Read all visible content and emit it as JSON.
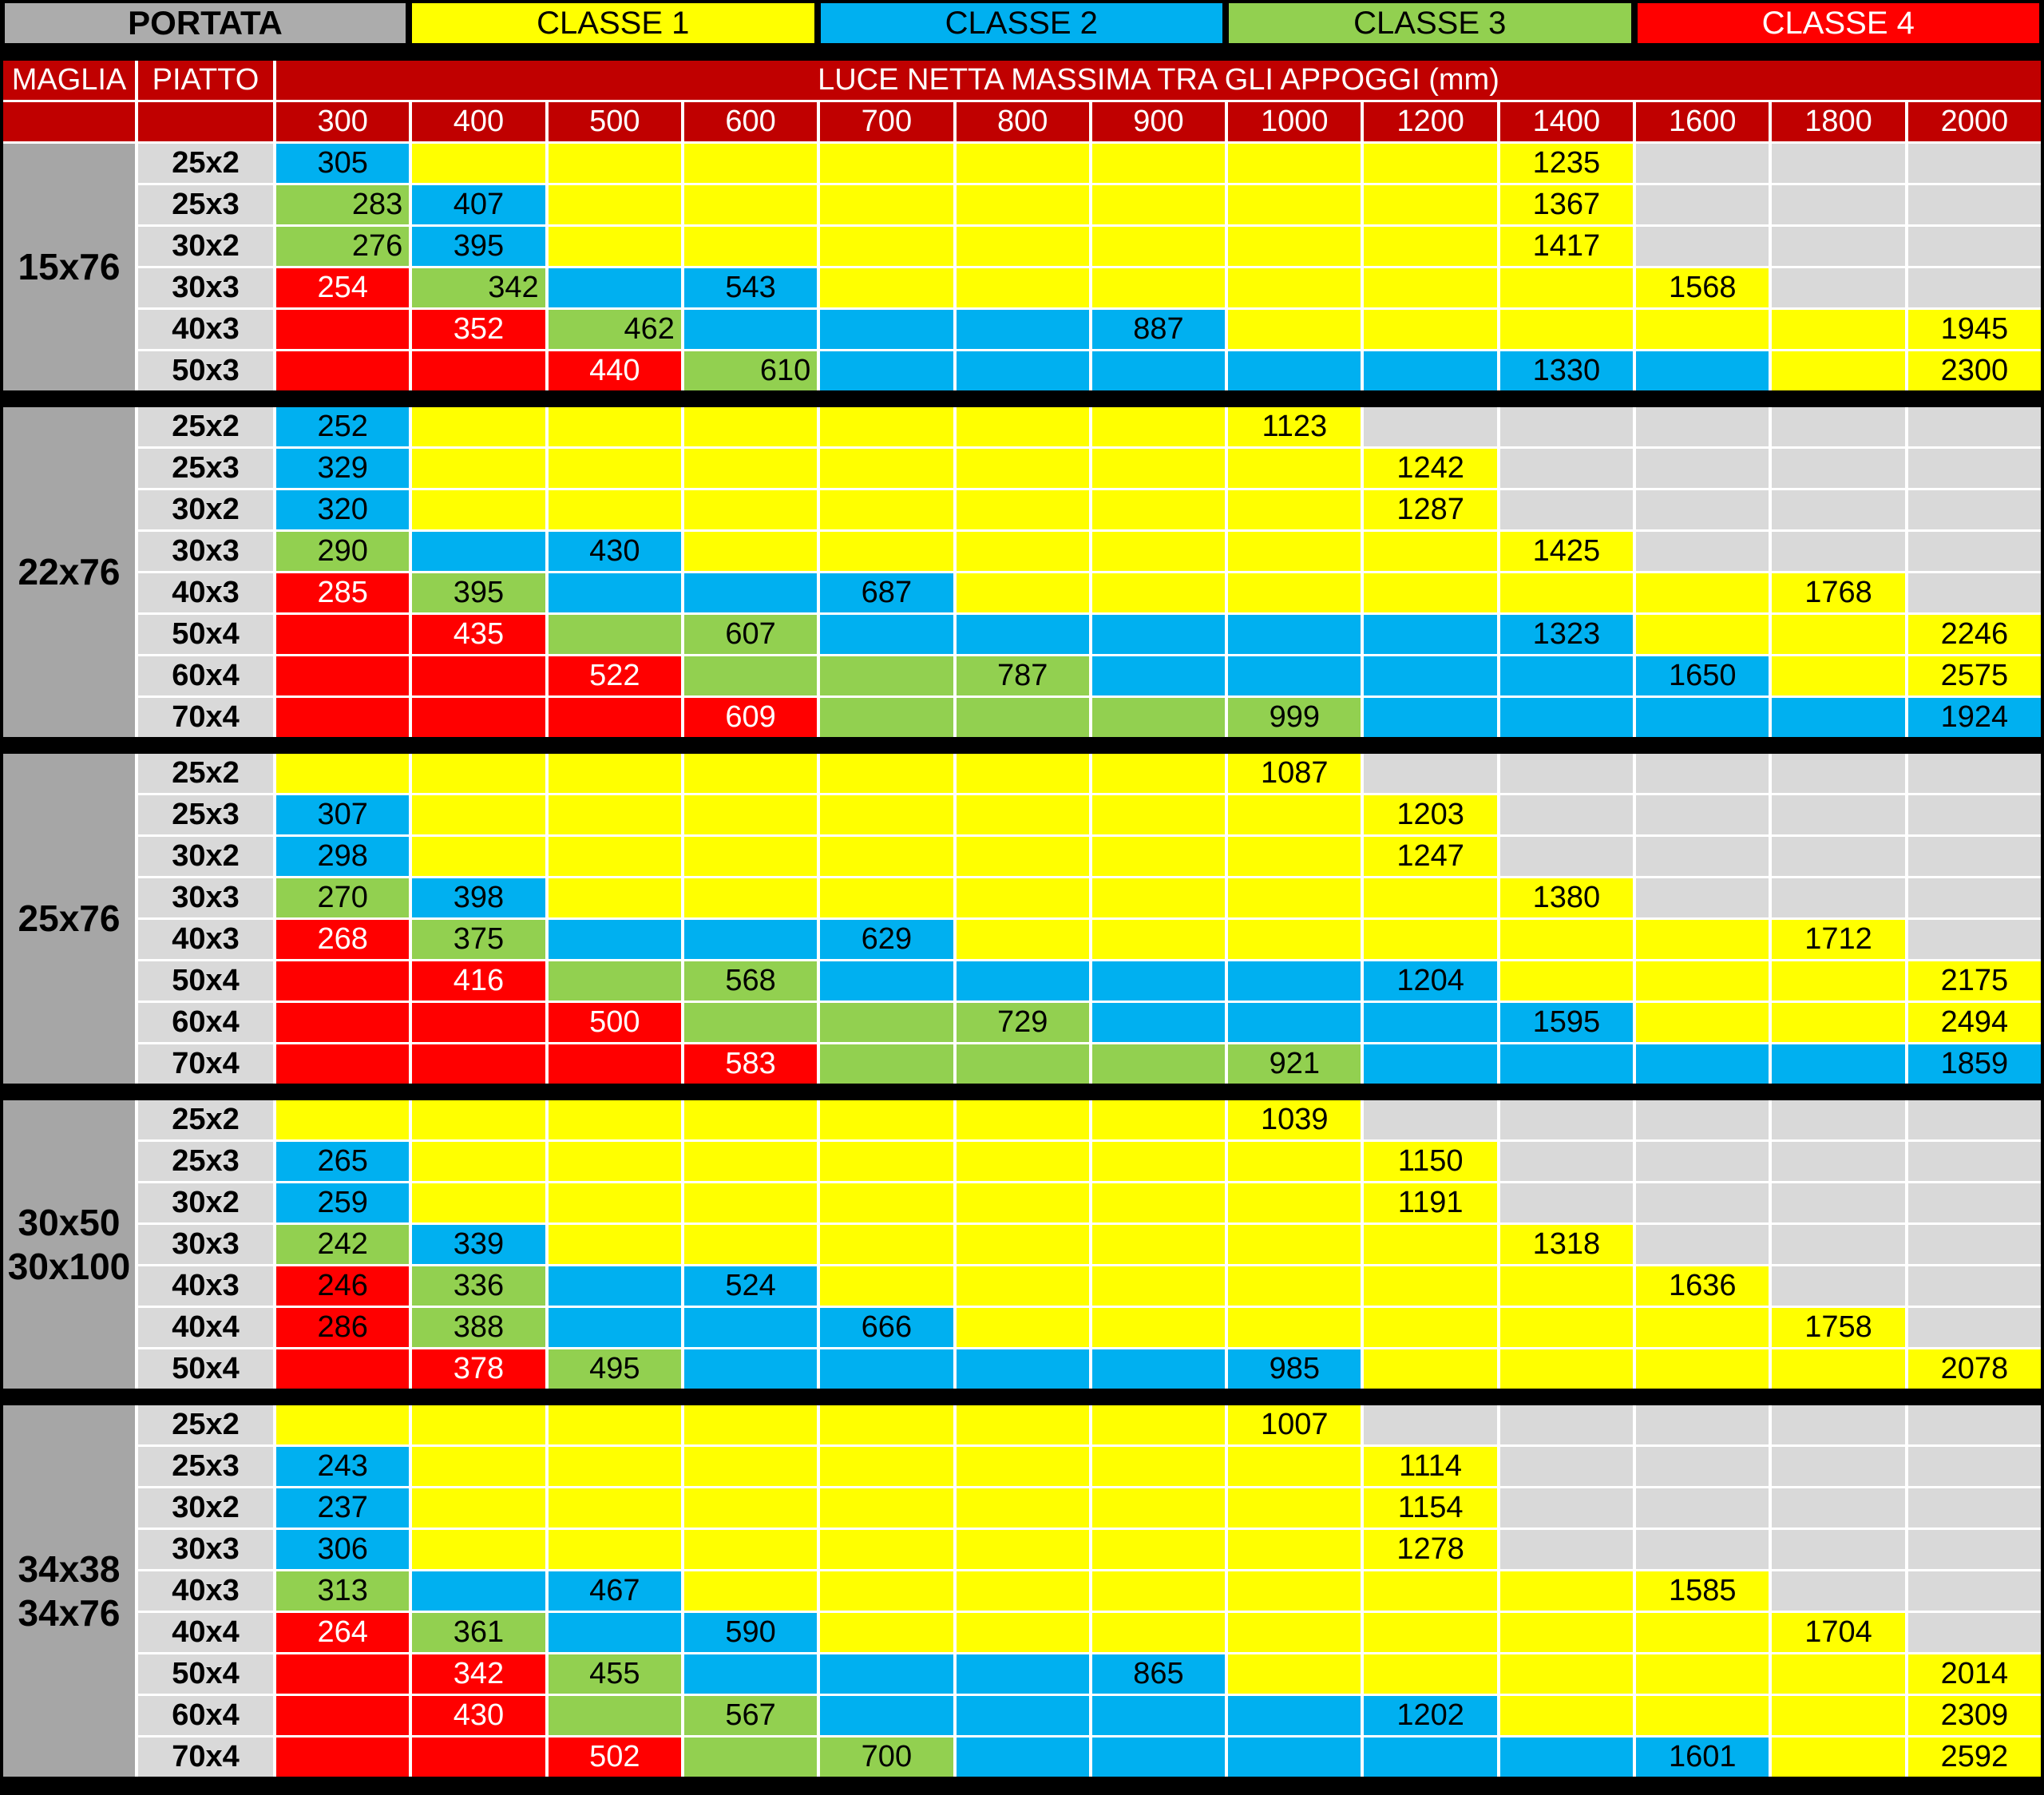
{
  "chart_data": {
    "type": "table",
    "title": "PORTATA",
    "header": {
      "portata_label": "PORTATA",
      "classes": [
        {
          "label": "CLASSE 1",
          "color": "y",
          "text_color": "#000000"
        },
        {
          "label": "CLASSE 2",
          "color": "b",
          "text_color": "#000000"
        },
        {
          "label": "CLASSE 3",
          "color": "g",
          "text_color": "#000000"
        },
        {
          "label": "CLASSE 4",
          "color": "r",
          "text_color": "#ffffff"
        }
      ],
      "maglia_label": "MAGLIA",
      "piatto_label": "PIATTO",
      "luce_label": "LUCE NETTA MASSIMA TRA GLI APPOGGI (mm)",
      "spans": [
        "300",
        "400",
        "500",
        "600",
        "700",
        "800",
        "900",
        "1000",
        "1200",
        "1400",
        "1600",
        "1800",
        "2000"
      ]
    },
    "palette": {
      "y": "#FFFF00",
      "b": "#00B0F0",
      "g": "#92D050",
      "r": "#FF0000",
      "e": "#D9D9D9",
      "header_red": "#C00000",
      "maglia_gray": "#A6A6A6",
      "piatto_gray": "#D9D9D9",
      "portata_gray": "#ACACAC",
      "separator": "#000000"
    },
    "cell_class_legend": {
      "y": "CLASSE 1",
      "b": "CLASSE 2",
      "g": "CLASSE 3",
      "r": "CLASSE 4",
      "e": "no-data"
    },
    "cell_token_format": "color[:value[:flags]]  flags: r=right-aligned, k=black text on red",
    "groups": [
      {
        "maglia": [
          "15x76"
        ],
        "rows": [
          {
            "piatto": "25x2",
            "cells": [
              "b:305",
              "y",
              "y",
              "y",
              "y",
              "y",
              "y",
              "y",
              "y",
              "y:1235",
              "e",
              "e",
              "e"
            ]
          },
          {
            "piatto": "25x3",
            "cells": [
              "g:283:r",
              "b:407",
              "y",
              "y",
              "y",
              "y",
              "y",
              "y",
              "y",
              "y:1367",
              "e",
              "e",
              "e"
            ]
          },
          {
            "piatto": "30x2",
            "cells": [
              "g:276:r",
              "b:395",
              "y",
              "y",
              "y",
              "y",
              "y",
              "y",
              "y",
              "y:1417",
              "e",
              "e",
              "e"
            ]
          },
          {
            "piatto": "30x3",
            "cells": [
              "r:254",
              "g:342:r",
              "b",
              "b:543",
              "y",
              "y",
              "y",
              "y",
              "y",
              "y",
              "y:1568",
              "e",
              "e"
            ]
          },
          {
            "piatto": "40x3",
            "cells": [
              "r",
              "r:352",
              "g:462:r",
              "b",
              "b",
              "b",
              "b:887",
              "y",
              "y",
              "y",
              "y",
              "y",
              "y:1945"
            ]
          },
          {
            "piatto": "50x3",
            "cells": [
              "r",
              "r",
              "r:440",
              "g:610:r",
              "b",
              "b",
              "b",
              "b",
              "b",
              "b:1330",
              "b",
              "y",
              "y:2300"
            ]
          }
        ]
      },
      {
        "maglia": [
          "22x76"
        ],
        "rows": [
          {
            "piatto": "25x2",
            "cells": [
              "b:252",
              "y",
              "y",
              "y",
              "y",
              "y",
              "y",
              "y:1123",
              "e",
              "e",
              "e",
              "e",
              "e"
            ]
          },
          {
            "piatto": "25x3",
            "cells": [
              "b:329",
              "y",
              "y",
              "y",
              "y",
              "y",
              "y",
              "y",
              "y:1242",
              "e",
              "e",
              "e",
              "e"
            ]
          },
          {
            "piatto": "30x2",
            "cells": [
              "b:320",
              "y",
              "y",
              "y",
              "y",
              "y",
              "y",
              "y",
              "y:1287",
              "e",
              "e",
              "e",
              "e"
            ]
          },
          {
            "piatto": "30x3",
            "cells": [
              "g:290",
              "b",
              "b:430",
              "y",
              "y",
              "y",
              "y",
              "y",
              "y",
              "y:1425",
              "e",
              "e",
              "e"
            ]
          },
          {
            "piatto": "40x3",
            "cells": [
              "r:285",
              "g:395",
              "b",
              "b",
              "b:687",
              "y",
              "y",
              "y",
              "y",
              "y",
              "y",
              "y:1768",
              "e"
            ]
          },
          {
            "piatto": "50x4",
            "cells": [
              "r",
              "r:435",
              "g",
              "g:607",
              "b",
              "b",
              "b",
              "b",
              "b",
              "b:1323",
              "y",
              "y",
              "y:2246"
            ]
          },
          {
            "piatto": "60x4",
            "cells": [
              "r",
              "r",
              "r:522",
              "g",
              "g",
              "g:787",
              "b",
              "b",
              "b",
              "b",
              "b:1650",
              "y",
              "y:2575"
            ]
          },
          {
            "piatto": "70x4",
            "cells": [
              "r",
              "r",
              "r",
              "r:609",
              "g",
              "g",
              "g",
              "g:999",
              "b",
              "b",
              "b",
              "b",
              "b:1924"
            ]
          }
        ]
      },
      {
        "maglia": [
          "25x76"
        ],
        "rows": [
          {
            "piatto": "25x2",
            "cells": [
              "y",
              "y",
              "y",
              "y",
              "y",
              "y",
              "y",
              "y:1087",
              "e",
              "e",
              "e",
              "e",
              "e"
            ]
          },
          {
            "piatto": "25x3",
            "cells": [
              "b:307",
              "y",
              "y",
              "y",
              "y",
              "y",
              "y",
              "y",
              "y:1203",
              "e",
              "e",
              "e",
              "e"
            ]
          },
          {
            "piatto": "30x2",
            "cells": [
              "b:298",
              "y",
              "y",
              "y",
              "y",
              "y",
              "y",
              "y",
              "y:1247",
              "e",
              "e",
              "e",
              "e"
            ]
          },
          {
            "piatto": "30x3",
            "cells": [
              "g:270",
              "b:398",
              "y",
              "y",
              "y",
              "y",
              "y",
              "y",
              "y",
              "y:1380",
              "e",
              "e",
              "e"
            ]
          },
          {
            "piatto": "40x3",
            "cells": [
              "r:268",
              "g:375",
              "b",
              "b",
              "b:629",
              "y",
              "y",
              "y",
              "y",
              "y",
              "y",
              "y:1712",
              "e"
            ]
          },
          {
            "piatto": "50x4",
            "cells": [
              "r",
              "r:416",
              "g",
              "g:568",
              "b",
              "b",
              "b",
              "b",
              "b:1204",
              "y",
              "y",
              "y",
              "y:2175"
            ]
          },
          {
            "piatto": "60x4",
            "cells": [
              "r",
              "r",
              "r:500",
              "g",
              "g",
              "g:729",
              "b",
              "b",
              "b",
              "b:1595",
              "y",
              "y",
              "y:2494"
            ]
          },
          {
            "piatto": "70x4",
            "cells": [
              "r",
              "r",
              "r",
              "r:583",
              "g",
              "g",
              "g",
              "g:921",
              "b",
              "b",
              "b",
              "b",
              "b:1859"
            ]
          }
        ]
      },
      {
        "maglia": [
          "30x50",
          "30x100"
        ],
        "rows": [
          {
            "piatto": "25x2",
            "cells": [
              "y",
              "y",
              "y",
              "y",
              "y",
              "y",
              "y",
              "y:1039",
              "e",
              "e",
              "e",
              "e",
              "e"
            ]
          },
          {
            "piatto": "25x3",
            "cells": [
              "b:265",
              "y",
              "y",
              "y",
              "y",
              "y",
              "y",
              "y",
              "y:1150",
              "e",
              "e",
              "e",
              "e"
            ]
          },
          {
            "piatto": "30x2",
            "cells": [
              "b:259",
              "y",
              "y",
              "y",
              "y",
              "y",
              "y",
              "y",
              "y:1191",
              "e",
              "e",
              "e",
              "e"
            ]
          },
          {
            "piatto": "30x3",
            "cells": [
              "g:242",
              "b:339",
              "y",
              "y",
              "y",
              "y",
              "y",
              "y",
              "y",
              "y:1318",
              "e",
              "e",
              "e"
            ]
          },
          {
            "piatto": "40x3",
            "cells": [
              "r:246:k",
              "g:336",
              "b",
              "b:524",
              "y",
              "y",
              "y",
              "y",
              "y",
              "y",
              "y:1636",
              "e",
              "e"
            ]
          },
          {
            "piatto": "40x4",
            "cells": [
              "r:286:k",
              "g:388",
              "b",
              "b",
              "b:666",
              "y",
              "y",
              "y",
              "y",
              "y",
              "y",
              "y:1758",
              "e"
            ]
          },
          {
            "piatto": "50x4",
            "cells": [
              "r",
              "r:378",
              "g:495",
              "b",
              "b",
              "b",
              "b",
              "b:985",
              "y",
              "y",
              "y",
              "y",
              "y:2078"
            ]
          }
        ]
      },
      {
        "maglia": [
          "34x38",
          "34x76"
        ],
        "rows": [
          {
            "piatto": "25x2",
            "cells": [
              "y",
              "y",
              "y",
              "y",
              "y",
              "y",
              "y",
              "y:1007",
              "e",
              "e",
              "e",
              "e",
              "e"
            ]
          },
          {
            "piatto": "25x3",
            "cells": [
              "b:243",
              "y",
              "y",
              "y",
              "y",
              "y",
              "y",
              "y",
              "y:1114",
              "e",
              "e",
              "e",
              "e"
            ]
          },
          {
            "piatto": "30x2",
            "cells": [
              "b:237",
              "y",
              "y",
              "y",
              "y",
              "y",
              "y",
              "y",
              "y:1154",
              "e",
              "e",
              "e",
              "e"
            ]
          },
          {
            "piatto": "30x3",
            "cells": [
              "b:306",
              "y",
              "y",
              "y",
              "y",
              "y",
              "y",
              "y",
              "y:1278",
              "e",
              "e",
              "e",
              "e"
            ]
          },
          {
            "piatto": "40x3",
            "cells": [
              "g:313",
              "b",
              "b:467",
              "y",
              "y",
              "y",
              "y",
              "y",
              "y",
              "y",
              "y:1585",
              "e",
              "e"
            ]
          },
          {
            "piatto": "40x4",
            "cells": [
              "r:264",
              "g:361",
              "b",
              "b:590",
              "y",
              "y",
              "y",
              "y",
              "y",
              "y",
              "y",
              "y:1704",
              "e"
            ]
          },
          {
            "piatto": "50x4",
            "cells": [
              "r",
              "r:342",
              "g:455",
              "b",
              "b",
              "b",
              "b:865",
              "y",
              "y",
              "y",
              "y",
              "y",
              "y:2014"
            ]
          },
          {
            "piatto": "60x4",
            "cells": [
              "r",
              "r:430",
              "g",
              "g:567",
              "b",
              "b",
              "b",
              "b",
              "b:1202",
              "y",
              "y",
              "y",
              "y:2309"
            ]
          },
          {
            "piatto": "70x4",
            "cells": [
              "r",
              "r",
              "r:502",
              "g",
              "g:700",
              "b",
              "b",
              "b",
              "b",
              "b",
              "b:1601",
              "y",
              "y:2592"
            ]
          }
        ]
      }
    ]
  }
}
